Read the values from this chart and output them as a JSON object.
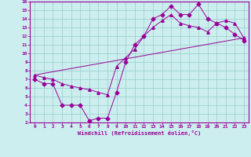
{
  "xlabel": "Windchill (Refroidissement éolien,°C)",
  "xlim": [
    -0.5,
    23.5
  ],
  "ylim": [
    2,
    16
  ],
  "xticks": [
    0,
    1,
    2,
    3,
    4,
    5,
    6,
    7,
    8,
    9,
    10,
    11,
    12,
    13,
    14,
    15,
    16,
    17,
    18,
    19,
    20,
    21,
    22,
    23
  ],
  "yticks": [
    2,
    3,
    4,
    5,
    6,
    7,
    8,
    9,
    10,
    11,
    12,
    13,
    14,
    15,
    16
  ],
  "line_color": "#990099",
  "bg_color": "#cceeee",
  "grid_color": "#99cccc",
  "line1_x": [
    0,
    1,
    2,
    3,
    4,
    5,
    6,
    7,
    8,
    9,
    10,
    11,
    12,
    13,
    14,
    15,
    16,
    17,
    18,
    19,
    20,
    21,
    22,
    23
  ],
  "line1_y": [
    7,
    6.5,
    6.5,
    4,
    4,
    4,
    2.2,
    2.5,
    2.5,
    5.5,
    9.0,
    11.0,
    12.0,
    14.0,
    14.5,
    15.5,
    14.5,
    14.5,
    15.7,
    14.0,
    13.5,
    13.0,
    12.2,
    11.5
  ],
  "line2_x": [
    0,
    1,
    2,
    3,
    4,
    5,
    6,
    7,
    8,
    9,
    10,
    11,
    12,
    13,
    14,
    15,
    16,
    17,
    18,
    19,
    20,
    21,
    22,
    23
  ],
  "line2_y": [
    7.5,
    7.2,
    7.0,
    6.5,
    6.2,
    6.0,
    5.8,
    5.5,
    5.2,
    8.5,
    9.5,
    10.5,
    12.0,
    13.0,
    13.8,
    14.5,
    13.5,
    13.2,
    13.0,
    12.5,
    13.5,
    13.8,
    13.5,
    11.8
  ],
  "line3_x": [
    0,
    23
  ],
  "line3_y": [
    7.5,
    11.8
  ],
  "marker_size": 2.5
}
